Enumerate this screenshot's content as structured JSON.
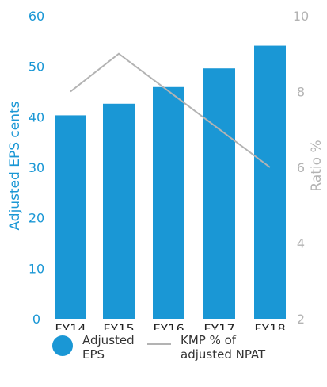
{
  "colors": {
    "bar": "#1a97d5",
    "line": "#b3b3b3",
    "axis_text": "#222222"
  },
  "chart_data": {
    "type": "bar+line",
    "categories": [
      "FY14",
      "FY15",
      "FY16",
      "FY17",
      "FY18"
    ],
    "series": [
      {
        "name": "Adjusted EPS",
        "type": "bar",
        "axis": "left",
        "values": [
          40.3,
          42.6,
          45.9,
          49.6,
          54.1
        ]
      },
      {
        "name": "KMP % of adjusted NPAT",
        "type": "line",
        "axis": "right",
        "values": [
          8.0,
          9.0,
          null,
          null,
          6.0
        ]
      }
    ],
    "y_left": {
      "label": "Adjusted EPS cents",
      "lim": [
        0,
        60
      ],
      "ticks": [
        "0",
        "10",
        "20",
        "30",
        "40",
        "50",
        "60"
      ]
    },
    "y_right": {
      "label": "Ratio %",
      "lim": [
        2,
        10
      ],
      "ticks": [
        "2",
        "4",
        "6",
        "8",
        "10"
      ]
    },
    "grid": false
  },
  "legend": {
    "bar_label_line1": "Adjusted",
    "bar_label_line2": "EPS",
    "line_label_line1": "KMP % of",
    "line_label_line2": "adjusted NPAT"
  }
}
